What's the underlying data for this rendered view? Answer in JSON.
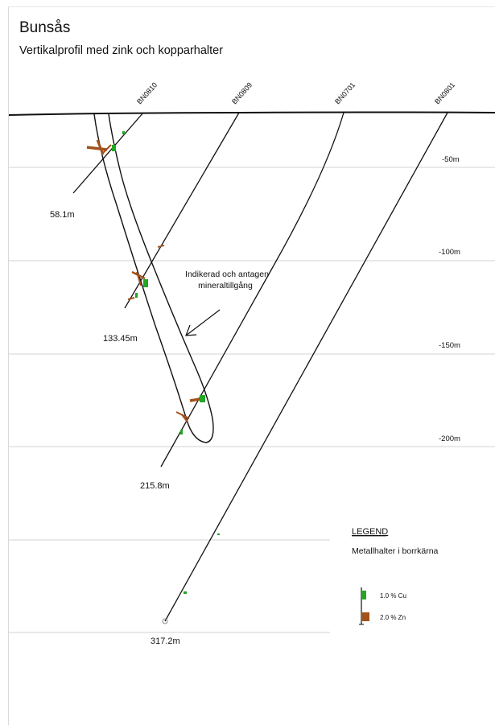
{
  "title": "Bunsås",
  "subtitle": "Vertikalprofil med zink och kopparhalter",
  "drillholes": [
    {
      "id": "BN0810",
      "end_depth_label": "58.1m"
    },
    {
      "id": "BN0809",
      "end_depth_label": "133.45m"
    },
    {
      "id": "BN0701",
      "end_depth_label": "215.8m"
    },
    {
      "id": "BN0801",
      "end_depth_label": "317.2m"
    }
  ],
  "depth_levels": [
    "-50m",
    "-100m",
    "-150m",
    "-200m"
  ],
  "annotation": {
    "line1": "Indikerad och antagen",
    "line2": "mineraltillgång"
  },
  "legend": {
    "heading": "LEGEND",
    "subtitle": "Metallhalter i borrkärna",
    "items": [
      {
        "label": "1.0 % Cu",
        "color": "#22a722"
      },
      {
        "label": "2.0 % Zn",
        "color": "#a2521a"
      }
    ]
  },
  "colors": {
    "cu": "#22a722",
    "zn": "#a2521a",
    "line": "#111111",
    "grid": "#dcdcdc"
  }
}
